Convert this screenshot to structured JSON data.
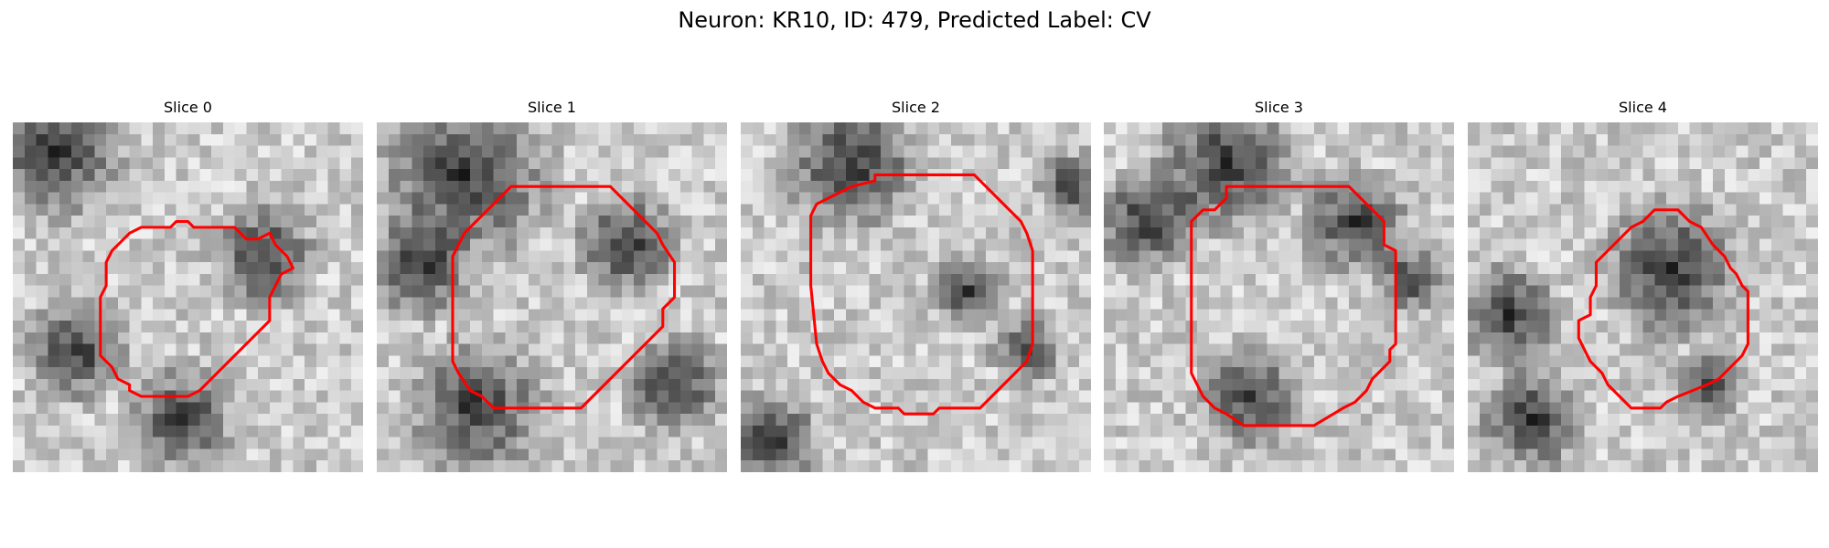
{
  "figure": {
    "title": "Neuron: KR10, ID: 479, Predicted Label: CV"
  },
  "contour_color": "#ff0000",
  "panels": [
    {
      "title": "Slice 0",
      "outline": [
        [
          15,
          8.5
        ],
        [
          14,
          8.5
        ],
        [
          13.5,
          9
        ],
        [
          11,
          9
        ],
        [
          10,
          9.5
        ],
        [
          9.5,
          10
        ],
        [
          9,
          10.5
        ],
        [
          8.5,
          11
        ],
        [
          8,
          12
        ],
        [
          8,
          14
        ],
        [
          7.5,
          15
        ],
        [
          7.5,
          20
        ],
        [
          8,
          20.5
        ],
        [
          8.5,
          21
        ],
        [
          9,
          22
        ],
        [
          10,
          22.5
        ],
        [
          10,
          23
        ],
        [
          11,
          23.5
        ],
        [
          15,
          23.5
        ],
        [
          16,
          23
        ],
        [
          16.5,
          22.5
        ],
        [
          18,
          21
        ],
        [
          19,
          20
        ],
        [
          20,
          19
        ],
        [
          21,
          18
        ],
        [
          22,
          17
        ],
        [
          22,
          15
        ],
        [
          22.5,
          14
        ],
        [
          23,
          13
        ],
        [
          24,
          12.5
        ],
        [
          23.5,
          11.5
        ],
        [
          22.5,
          10.5
        ],
        [
          22,
          9.5
        ],
        [
          21,
          10
        ],
        [
          20,
          10
        ],
        [
          19,
          9
        ],
        [
          15.5,
          9
        ]
      ]
    },
    {
      "title": "Slice 1",
      "outline": [
        [
          12,
          5.5
        ],
        [
          20,
          5.5
        ],
        [
          21,
          6.5
        ],
        [
          22,
          7.5
        ],
        [
          23,
          8.5
        ],
        [
          24,
          9.5
        ],
        [
          24.5,
          10.5
        ],
        [
          25.5,
          12
        ],
        [
          25.5,
          15
        ],
        [
          25,
          15.5
        ],
        [
          24.5,
          16
        ],
        [
          24.5,
          17.5
        ],
        [
          23.5,
          18.5
        ],
        [
          22.5,
          19.5
        ],
        [
          21.5,
          20.5
        ],
        [
          20.5,
          21.5
        ],
        [
          19.5,
          22.5
        ],
        [
          18.5,
          23.5
        ],
        [
          17.5,
          24.5
        ],
        [
          10,
          24.5
        ],
        [
          9,
          23.5
        ],
        [
          8,
          23
        ],
        [
          7,
          21.5
        ],
        [
          6.5,
          20.5
        ],
        [
          6.5,
          11.5
        ],
        [
          7,
          10.5
        ],
        [
          7.5,
          9.5
        ],
        [
          8.5,
          8.5
        ],
        [
          9.5,
          7.5
        ],
        [
          10.5,
          6.5
        ],
        [
          11.5,
          5.5
        ]
      ]
    },
    {
      "title": "Slice 2",
      "outline": [
        [
          12,
          4.5
        ],
        [
          20,
          4.5
        ],
        [
          21,
          5.5
        ],
        [
          22,
          6.5
        ],
        [
          23,
          7.5
        ],
        [
          24,
          8.5
        ],
        [
          24.5,
          9.5
        ],
        [
          25,
          11
        ],
        [
          25,
          19
        ],
        [
          24.5,
          20.5
        ],
        [
          24,
          21
        ],
        [
          23.5,
          21.5
        ],
        [
          22.5,
          22.5
        ],
        [
          21.5,
          23.5
        ],
        [
          20.5,
          24.5
        ],
        [
          17,
          24.5
        ],
        [
          16.5,
          25
        ],
        [
          14,
          25
        ],
        [
          13.5,
          24.5
        ],
        [
          11.5,
          24.5
        ],
        [
          10.5,
          24
        ],
        [
          9.5,
          23
        ],
        [
          8.5,
          22.5
        ],
        [
          7.5,
          21.5
        ],
        [
          7,
          20.5
        ],
        [
          6.5,
          19
        ],
        [
          6,
          14
        ],
        [
          6,
          8
        ],
        [
          6.5,
          7
        ],
        [
          7.5,
          6.5
        ],
        [
          8.5,
          6
        ],
        [
          9.5,
          5.5
        ],
        [
          11.5,
          5
        ],
        [
          11.5,
          4.5
        ]
      ]
    },
    {
      "title": "Slice 3",
      "outline": [
        [
          11,
          5.5
        ],
        [
          21,
          5.5
        ],
        [
          22,
          6.5
        ],
        [
          23,
          7.5
        ],
        [
          24,
          8.5
        ],
        [
          24,
          10.5
        ],
        [
          25,
          11
        ],
        [
          25,
          19
        ],
        [
          24.5,
          19.5
        ],
        [
          24.5,
          20.5
        ],
        [
          23.5,
          21.5
        ],
        [
          23,
          22
        ],
        [
          22.5,
          23
        ],
        [
          21.5,
          24
        ],
        [
          20.5,
          24.5
        ],
        [
          18,
          26
        ],
        [
          12,
          26
        ],
        [
          10.5,
          25
        ],
        [
          9.5,
          24.5
        ],
        [
          8.5,
          23.5
        ],
        [
          8,
          22.5
        ],
        [
          7.5,
          21.5
        ],
        [
          7.5,
          8.5
        ],
        [
          8.5,
          7.5
        ],
        [
          9.5,
          7.5
        ],
        [
          10.5,
          6.5
        ],
        [
          10.5,
          5.5
        ]
      ]
    },
    {
      "title": "Slice 4",
      "outline": [
        [
          16,
          7.5
        ],
        [
          18,
          7.5
        ],
        [
          19,
          8.5
        ],
        [
          20,
          9
        ],
        [
          21,
          10.5
        ],
        [
          22,
          11.5
        ],
        [
          22.5,
          12.5
        ],
        [
          23,
          13
        ],
        [
          23.5,
          14
        ],
        [
          24,
          14.5
        ],
        [
          24,
          19
        ],
        [
          23.5,
          20
        ],
        [
          22.5,
          21
        ],
        [
          21.5,
          22
        ],
        [
          20.5,
          22.5
        ],
        [
          18,
          23.5
        ],
        [
          17,
          24
        ],
        [
          16.5,
          24.5
        ],
        [
          14,
          24.5
        ],
        [
          13,
          23.5
        ],
        [
          12,
          22.5
        ],
        [
          11.5,
          21.5
        ],
        [
          10.5,
          20.5
        ],
        [
          10,
          19.5
        ],
        [
          9.5,
          18.5
        ],
        [
          9.5,
          17
        ],
        [
          10.5,
          16.5
        ],
        [
          10.5,
          15
        ],
        [
          11,
          14
        ],
        [
          11,
          12
        ],
        [
          12,
          11
        ],
        [
          13,
          10
        ],
        [
          14,
          9
        ],
        [
          15,
          8.5
        ]
      ]
    }
  ]
}
